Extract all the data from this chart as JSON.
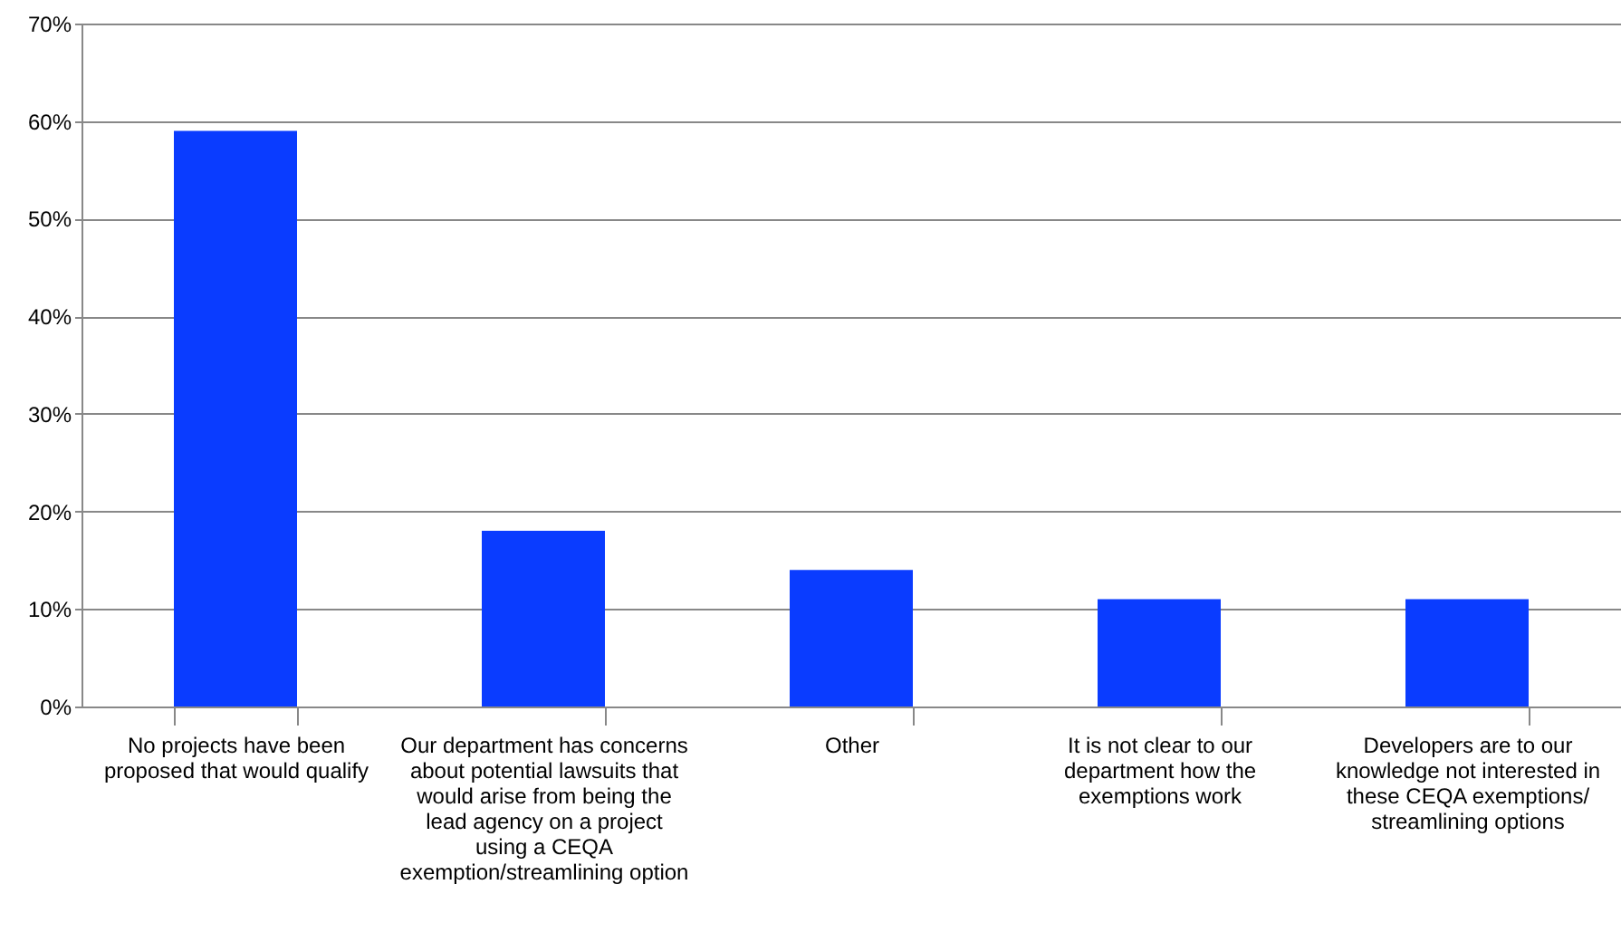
{
  "chart_data": {
    "type": "bar",
    "categories": [
      "No projects have been proposed that would qualify",
      "Our department has concerns about potential lawsuits that would arise from being the lead agency on a project using a CEQA exemption/streamlining option",
      "Other",
      "It is not clear to our department how the exemptions work",
      "Developers are to our knowledge not interested in these CEQA exemptions/ streamlining options"
    ],
    "values": [
      59,
      18,
      14,
      11,
      11
    ],
    "color": "#0a3cff",
    "ylim": [
      0,
      70
    ],
    "yticks": [
      {
        "value": 0,
        "label": "0%"
      },
      {
        "value": 10,
        "label": "10%"
      },
      {
        "value": 20,
        "label": "20%"
      },
      {
        "value": 30,
        "label": "30%"
      },
      {
        "value": 40,
        "label": "40%"
      },
      {
        "value": 50,
        "label": "50%"
      },
      {
        "value": 60,
        "label": "60%"
      },
      {
        "value": 70,
        "label": "70%"
      }
    ],
    "grid": "y"
  }
}
